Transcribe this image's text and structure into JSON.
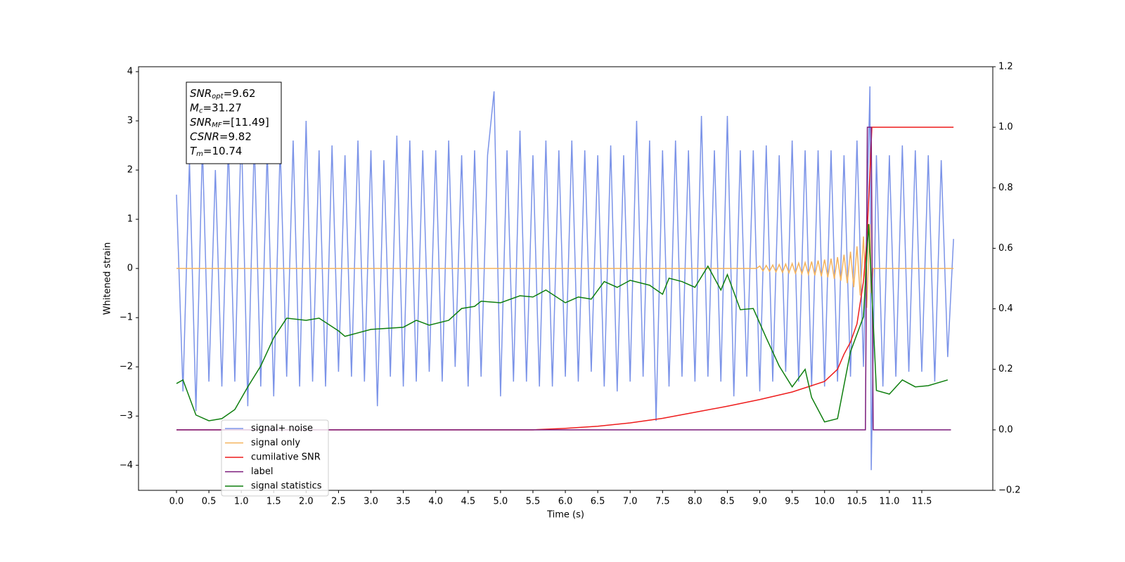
{
  "chart_data": {
    "type": "line",
    "xlabel": "Time (s)",
    "ylabel": "Whitened strain",
    "xlim": [
      -0.586,
      12.596
    ],
    "ylim": [
      -4.51,
      4.1
    ],
    "y2lim": [
      -0.2,
      1.2
    ],
    "xticks": [
      {
        "value": 0,
        "label": "0.0"
      },
      0.5,
      {
        "value": 1,
        "label": "1.0"
      },
      1.5,
      {
        "value": 2,
        "label": "2.0"
      },
      2.5,
      {
        "value": 3,
        "label": "3.0"
      },
      3.5,
      {
        "value": 4,
        "label": "4.0"
      },
      4.5,
      {
        "value": 5,
        "label": "5.0"
      },
      5.5,
      {
        "value": 6,
        "label": "6.0"
      },
      6.5,
      {
        "value": 7,
        "label": "7.0"
      },
      7.5,
      {
        "value": 8,
        "label": "8.0"
      },
      8.5,
      {
        "value": 9,
        "label": "9.0"
      },
      9.5,
      {
        "value": 10,
        "label": "10.0"
      },
      10.5,
      {
        "value": 11,
        "label": "11.0"
      },
      11.5
    ],
    "yticks": [
      {
        "value": -4,
        "label": "−4"
      },
      {
        "value": -3,
        "label": "−3"
      },
      {
        "value": -2,
        "label": "−2"
      },
      {
        "value": -1,
        "label": "−1"
      },
      0,
      1,
      2,
      3,
      4
    ],
    "y2ticks": [
      {
        "value": -0.2,
        "label": "−0.2"
      },
      {
        "value": 0,
        "label": "0.0"
      },
      0.2,
      0.4,
      0.6,
      0.8,
      {
        "value": 1,
        "label": "1.0"
      },
      1.2
    ],
    "legend_loc": "lower left",
    "annotations": [
      {
        "symbol": "SNR",
        "sub": "opt",
        "rest": "=9.62"
      },
      {
        "symbol": "M",
        "sub": "c",
        "rest": "=31.27"
      },
      {
        "symbol": "SNR",
        "sub": "MF",
        "rest": "=[11.49]"
      },
      {
        "symbol": "CSNR",
        "sub": "",
        "rest": "=9.82"
      },
      {
        "symbol": "T",
        "sub": "m",
        "rest": "=10.74"
      }
    ],
    "series": [
      {
        "name": "signal+ noise",
        "color": "#7b93e8",
        "axis": "y",
        "x": [
          0,
          0.1,
          0.2,
          0.3,
          0.4,
          0.5,
          0.6,
          0.7,
          0.8,
          0.9,
          1,
          1.1,
          1.2,
          1.3,
          1.4,
          1.5,
          1.6,
          1.7,
          1.8,
          1.9,
          2,
          2.1,
          2.2,
          2.3,
          2.4,
          2.5,
          2.6,
          2.7,
          2.8,
          2.9,
          3,
          3.1,
          3.2,
          3.3,
          3.4,
          3.5,
          3.6,
          3.7,
          3.8,
          3.9,
          4,
          4.1,
          4.2,
          4.3,
          4.4,
          4.5,
          4.6,
          4.7,
          4.8,
          4.9,
          5,
          5.1,
          5.2,
          5.3,
          5.4,
          5.5,
          5.6,
          5.7,
          5.8,
          5.9,
          6,
          6.1,
          6.2,
          6.3,
          6.4,
          6.5,
          6.6,
          6.7,
          6.8,
          6.9,
          7,
          7.1,
          7.2,
          7.3,
          7.4,
          7.5,
          7.6,
          7.7,
          7.8,
          7.9,
          8,
          8.1,
          8.2,
          8.3,
          8.4,
          8.5,
          8.6,
          8.7,
          8.8,
          8.9,
          9,
          9.1,
          9.2,
          9.3,
          9.4,
          9.5,
          9.6,
          9.7,
          9.8,
          9.9,
          10,
          10.1,
          10.2,
          10.3,
          10.4,
          10.5,
          10.6,
          10.7,
          10.72,
          10.8,
          10.9,
          11,
          11.1,
          11.2,
          11.3,
          11.4,
          11.5,
          11.6,
          11.7,
          11.8,
          11.9,
          11.99
        ],
        "values": [
          1.5,
          -2.5,
          2.2,
          -2.9,
          2.5,
          -2.3,
          2.0,
          -2.4,
          2.5,
          -2.3,
          2.9,
          -2.8,
          2.6,
          -2.4,
          2.4,
          -2.6,
          2.5,
          -2.2,
          2.6,
          -2.4,
          3.0,
          -2.3,
          2.4,
          -2.4,
          2.5,
          -2.1,
          2.3,
          -2.2,
          2.6,
          -2.3,
          2.4,
          -2.8,
          2.2,
          -2.2,
          2.7,
          -2.4,
          2.6,
          -2.3,
          2.4,
          -2.1,
          2.4,
          -2.3,
          2.6,
          -2.0,
          2.3,
          -2.4,
          2.4,
          -2.2,
          2.3,
          3.6,
          -2.6,
          2.4,
          -2.3,
          2.8,
          -2.3,
          2.3,
          -2.4,
          2.6,
          -2.4,
          2.4,
          -2.2,
          2.6,
          -2.3,
          2.4,
          -2.1,
          2.3,
          -2.4,
          2.5,
          -2.5,
          2.3,
          -2.3,
          3.0,
          -2.2,
          2.6,
          -3.1,
          2.4,
          -2.4,
          2.6,
          -2.2,
          2.4,
          -2.3,
          3.1,
          -2.2,
          2.4,
          -2.3,
          3.1,
          -2.6,
          2.4,
          -2.2,
          2.4,
          -2.5,
          2.5,
          -2.3,
          2.3,
          -2.1,
          2.6,
          -2.3,
          2.4,
          -2.4,
          2.4,
          -2.4,
          2.4,
          -2.3,
          2.3,
          -2.2,
          2.6,
          -2.0,
          3.7,
          -4.1,
          2.3,
          -2.4,
          2.3,
          -2.2,
          2.5,
          -2.1,
          2.4,
          -2.1,
          2.3,
          -2.3,
          2.2,
          -1.8,
          0.6
        ]
      },
      {
        "name": "signal only",
        "color": "#f5b35c",
        "axis": "y",
        "x": [
          0,
          8.95,
          9,
          9.05,
          9.1,
          9.15,
          9.2,
          9.25,
          9.3,
          9.35,
          9.4,
          9.45,
          9.5,
          9.55,
          9.6,
          9.65,
          9.7,
          9.75,
          9.8,
          9.85,
          9.9,
          9.95,
          10,
          10.05,
          10.1,
          10.15,
          10.2,
          10.25,
          10.3,
          10.35,
          10.4,
          10.45,
          10.5,
          10.55,
          10.6,
          10.65,
          10.7,
          10.72,
          10.75,
          11.99
        ],
        "values": [
          0,
          0,
          0.05,
          -0.05,
          0.06,
          -0.06,
          0.07,
          -0.07,
          0.08,
          -0.08,
          0.09,
          -0.09,
          0.1,
          -0.1,
          0.11,
          -0.11,
          0.12,
          -0.12,
          0.14,
          -0.14,
          0.16,
          -0.16,
          0.18,
          -0.18,
          0.2,
          -0.21,
          0.23,
          -0.25,
          0.28,
          -0.3,
          0.34,
          -0.38,
          0.45,
          -0.55,
          0.65,
          -0.8,
          0.9,
          -0.5,
          0,
          0
        ]
      },
      {
        "name": "cumilative SNR",
        "color": "#ee1c1c",
        "axis": "y2",
        "x": [
          0,
          5.5,
          6,
          6.5,
          7,
          7.5,
          8,
          8.5,
          9,
          9.5,
          10,
          10.2,
          10.3,
          10.4,
          10.5,
          10.6,
          10.65,
          10.7,
          10.73,
          11.99
        ],
        "values": [
          0,
          0,
          0.005,
          0.012,
          0.023,
          0.038,
          0.058,
          0.078,
          0.1,
          0.125,
          0.16,
          0.2,
          0.25,
          0.29,
          0.35,
          0.49,
          0.62,
          0.85,
          1.0,
          1.0
        ]
      },
      {
        "name": "label",
        "color": "#7a1a7a",
        "axis": "y2",
        "x": [
          0,
          10.63,
          10.66,
          10.72,
          10.75,
          11.95
        ],
        "values": [
          0,
          0,
          1.0,
          1.0,
          0,
          0
        ]
      },
      {
        "name": "signal statistics",
        "color": "#0f7f0f",
        "axis": "y2",
        "x": [
          0,
          0.1,
          0.2,
          0.3,
          0.5,
          0.7,
          0.9,
          1.1,
          1.3,
          1.5,
          1.7,
          2,
          2.2,
          2.5,
          2.6,
          3,
          3.5,
          3.7,
          3.9,
          4.2,
          4.4,
          4.6,
          4.7,
          5,
          5.3,
          5.5,
          5.7,
          6,
          6.2,
          6.4,
          6.6,
          6.8,
          7,
          7.3,
          7.5,
          7.6,
          7.8,
          8,
          8.2,
          8.4,
          8.5,
          8.7,
          8.9,
          9.1,
          9.3,
          9.5,
          9.7,
          9.8,
          10,
          10.2,
          10.4,
          10.6,
          10.68,
          10.8,
          11,
          11.2,
          11.4,
          11.6,
          11.9
        ],
        "values": [
          0.153,
          0.165,
          0.107,
          0.049,
          0.03,
          0.037,
          0.067,
          0.142,
          0.211,
          0.304,
          0.369,
          0.362,
          0.369,
          0.327,
          0.309,
          0.332,
          0.339,
          0.362,
          0.346,
          0.362,
          0.401,
          0.408,
          0.425,
          0.42,
          0.443,
          0.439,
          0.462,
          0.42,
          0.439,
          0.432,
          0.49,
          0.471,
          0.494,
          0.478,
          0.448,
          0.501,
          0.49,
          0.471,
          0.541,
          0.462,
          0.513,
          0.397,
          0.401,
          0.304,
          0.211,
          0.142,
          0.2,
          0.107,
          0.026,
          0.037,
          0.258,
          0.374,
          0.68,
          0.13,
          0.118,
          0.165,
          0.142,
          0.146,
          0.165
        ]
      }
    ]
  }
}
